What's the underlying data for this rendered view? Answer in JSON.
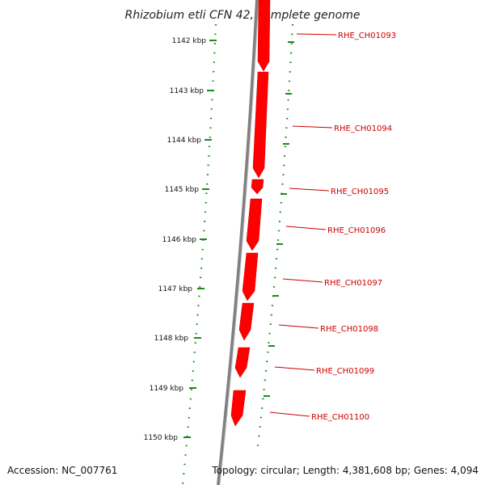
{
  "title": "Rhizobium etli CFN 42, complete genome",
  "accession": "Accession: NC_007761",
  "topology": "Topology: circular; Length: 4,381,608 bp; Genes: 4,094",
  "scale_labels": [
    "1142 kbp",
    "1143 kbp",
    "1144 kbp",
    "1145 kbp",
    "1146 kbp",
    "1147 kbp",
    "1148 kbp",
    "1149 kbp",
    "1150 kbp"
  ],
  "genes": [
    "RHE_CH01093",
    "RHE_CH01094",
    "RHE_CH01095",
    "RHE_CH01096",
    "RHE_CH01097",
    "RHE_CH01098",
    "RHE_CH01099",
    "RHE_CH01100"
  ],
  "colors": {
    "gene": "#ff0000",
    "gene_label": "#cc0000",
    "backbone": "#808080",
    "tick": "#1a8a1a"
  }
}
